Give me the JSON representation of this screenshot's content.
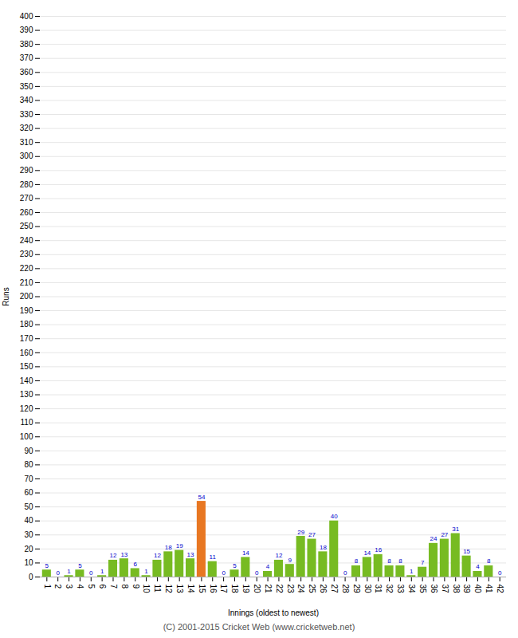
{
  "chart_data": {
    "type": "bar",
    "categories": [
      "1",
      "2",
      "3",
      "4",
      "5",
      "6",
      "7",
      "8",
      "9",
      "10",
      "11",
      "12",
      "13",
      "14",
      "15",
      "16",
      "17",
      "18",
      "19",
      "20",
      "21",
      "22",
      "23",
      "24",
      "25",
      "26",
      "27",
      "28",
      "29",
      "30",
      "31",
      "32",
      "33",
      "34",
      "35",
      "36",
      "37",
      "38",
      "39",
      "40",
      "41",
      "42"
    ],
    "values": [
      5,
      0,
      1,
      5,
      0,
      1,
      12,
      13,
      6,
      1,
      12,
      18,
      19,
      13,
      54,
      11,
      0,
      5,
      14,
      0,
      4,
      12,
      9,
      29,
      27,
      18,
      40,
      0,
      8,
      14,
      16,
      8,
      8,
      1,
      7,
      24,
      27,
      31,
      15,
      4,
      8,
      0
    ],
    "colors": [
      "#77bb22",
      "#77bb22",
      "#77bb22",
      "#77bb22",
      "#77bb22",
      "#77bb22",
      "#77bb22",
      "#77bb22",
      "#77bb22",
      "#77bb22",
      "#77bb22",
      "#77bb22",
      "#77bb22",
      "#77bb22",
      "#e87722",
      "#77bb22",
      "#77bb22",
      "#77bb22",
      "#77bb22",
      "#77bb22",
      "#77bb22",
      "#77bb22",
      "#77bb22",
      "#77bb22",
      "#77bb22",
      "#77bb22",
      "#77bb22",
      "#77bb22",
      "#77bb22",
      "#77bb22",
      "#77bb22",
      "#77bb22",
      "#77bb22",
      "#77bb22",
      "#77bb22",
      "#77bb22",
      "#77bb22",
      "#77bb22",
      "#77bb22",
      "#77bb22",
      "#77bb22",
      "#77bb22"
    ],
    "xlabel": "Innings (oldest to newest)",
    "ylabel": "Runs",
    "ylim": [
      0,
      400
    ],
    "yticks": [
      0,
      10,
      20,
      30,
      40,
      50,
      60,
      70,
      80,
      90,
      100,
      110,
      120,
      130,
      140,
      150,
      160,
      170,
      180,
      190,
      200,
      210,
      220,
      230,
      240,
      250,
      260,
      270,
      280,
      290,
      300,
      310,
      320,
      330,
      340,
      350,
      360,
      370,
      380,
      390,
      400
    ],
    "grid": true,
    "data_labels": true,
    "footer": "(C) 2001-2015 Cricket Web (www.cricketweb.net)"
  }
}
